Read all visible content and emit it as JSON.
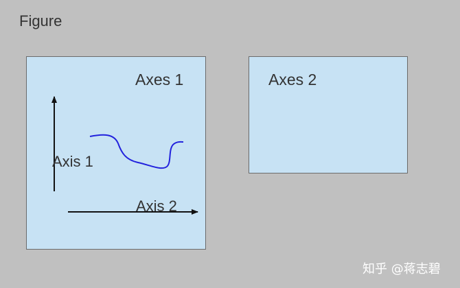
{
  "figure": {
    "label": "Figure"
  },
  "axes": [
    {
      "title": "Axes 1",
      "axis_labels": [
        "Axis 1",
        "Axis 2"
      ],
      "fill_color": "#c7e2f4",
      "curve_color": "#2222dd"
    },
    {
      "title": "Axes 2",
      "fill_color": "#c7e2f4"
    }
  ],
  "colors": {
    "background": "#c0c0c0",
    "border": "#6b6b6b",
    "arrow": "#111111"
  },
  "watermark": {
    "text": "知乎 @蒋志碧"
  }
}
